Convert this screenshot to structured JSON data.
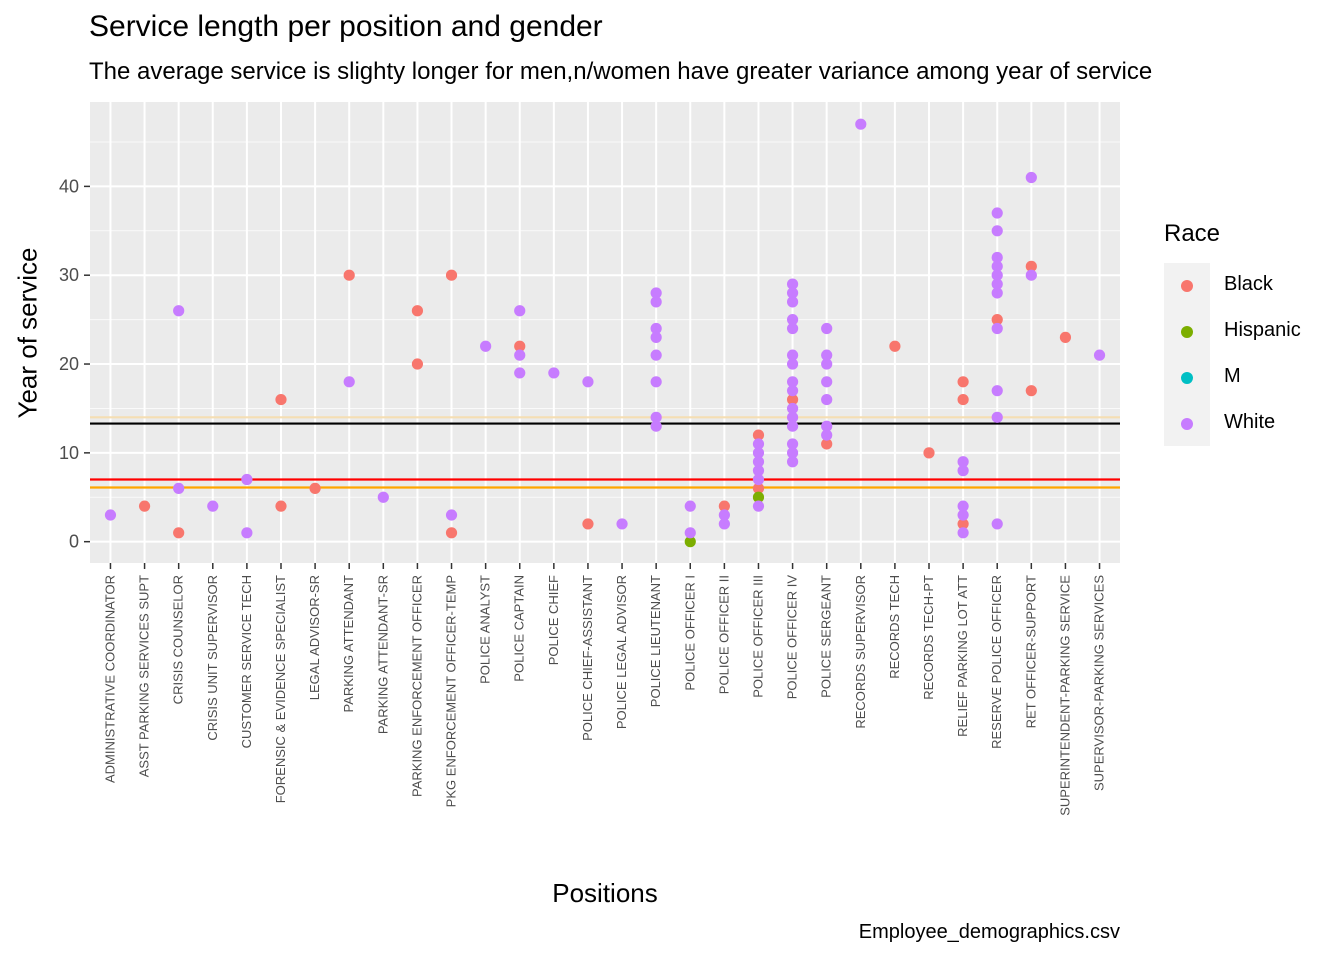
{
  "title": "Service length per position and gender",
  "subtitle": "The average service is slighty longer for men,n/women have greater variance among year of service",
  "caption": "Employee_demographics.csv",
  "legend": {
    "title": "Race",
    "items": [
      {
        "label": "Black",
        "color": "#F8766D"
      },
      {
        "label": "Hispanic",
        "color": "#7CAE00"
      },
      {
        "label": "M",
        "color": "#00BFC4"
      },
      {
        "label": "White",
        "color": "#C77CFF"
      }
    ]
  },
  "chart_data": {
    "type": "scatter",
    "xlabel": "Positions",
    "ylabel": "Year of service",
    "ylim": [
      -2.4,
      49.5
    ],
    "yticks": [
      0,
      10,
      20,
      30,
      40
    ],
    "grid": true,
    "legend_position": "right",
    "categories": [
      "ADMINISTRATIVE COORDINATOR",
      "ASST PARKING SERVICES SUPT",
      "CRISIS COUNSELOR",
      "CRISIS UNIT SUPERVISOR",
      "CUSTOMER SERVICE TECH",
      "FORENSIC & EVIDENCE SPECIALIST",
      "LEGAL ADVISOR-SR",
      "PARKING ATTENDANT",
      "PARKING ATTENDANT-SR",
      "PARKING ENFORCEMENT OFFICER",
      "PKG ENFORCEMENT OFFICER-TEMP",
      "POLICE ANALYST",
      "POLICE CAPTAIN",
      "POLICE CHIEF",
      "POLICE CHIEF-ASSISTANT",
      "POLICE LEGAL ADVISOR",
      "POLICE LIEUTENANT",
      "POLICE OFFICER I",
      "POLICE OFFICER II",
      "POLICE OFFICER III",
      "POLICE OFFICER IV",
      "POLICE SERGEANT",
      "RECORDS SUPERVISOR",
      "RECORDS TECH",
      "RECORDS TECH-PT",
      "RELIEF PARKING LOT ATT",
      "RESERVE POLICE OFFICER",
      "RET OFFICER-SUPPORT",
      "SUPERINTENDENT-PARKING SERVICE",
      "SUPERVISOR-PARKING SERVICES"
    ],
    "hlines": [
      {
        "y": 14.0,
        "color": "#F5DEB3"
      },
      {
        "y": 13.3,
        "color": "#000000"
      },
      {
        "y": 7.0,
        "color": "#FF0000"
      },
      {
        "y": 6.1,
        "color": "#FFA500"
      }
    ],
    "series": [
      {
        "name": "Black",
        "color": "#F8766D",
        "points": [
          [
            1,
            4
          ],
          [
            2,
            1
          ],
          [
            5,
            16
          ],
          [
            5,
            4
          ],
          [
            6,
            6
          ],
          [
            7,
            30
          ],
          [
            9,
            26
          ],
          [
            9,
            20
          ],
          [
            10,
            30
          ],
          [
            10,
            1
          ],
          [
            12,
            22
          ],
          [
            14,
            2
          ],
          [
            18,
            4
          ],
          [
            19,
            12
          ],
          [
            19,
            6
          ],
          [
            20,
            16
          ],
          [
            21,
            11
          ],
          [
            23,
            22
          ],
          [
            24,
            10
          ],
          [
            25,
            18
          ],
          [
            25,
            16
          ],
          [
            25,
            2
          ],
          [
            26,
            25
          ],
          [
            27,
            31
          ],
          [
            27,
            17
          ],
          [
            28,
            23
          ]
        ]
      },
      {
        "name": "Hispanic",
        "color": "#7CAE00",
        "points": [
          [
            17,
            0
          ],
          [
            19,
            5
          ]
        ]
      },
      {
        "name": "White",
        "color": "#C77CFF",
        "points": [
          [
            0,
            3
          ],
          [
            2,
            26
          ],
          [
            2,
            6
          ],
          [
            3,
            4
          ],
          [
            4,
            7
          ],
          [
            4,
            1
          ],
          [
            7,
            18
          ],
          [
            8,
            5
          ],
          [
            10,
            3
          ],
          [
            11,
            22
          ],
          [
            12,
            26
          ],
          [
            12,
            21
          ],
          [
            12,
            19
          ],
          [
            13,
            19
          ],
          [
            14,
            18
          ],
          [
            15,
            2
          ],
          [
            16,
            28
          ],
          [
            16,
            27
          ],
          [
            16,
            24
          ],
          [
            16,
            23
          ],
          [
            16,
            21
          ],
          [
            16,
            18
          ],
          [
            16,
            14
          ],
          [
            16,
            13
          ],
          [
            17,
            4
          ],
          [
            17,
            1
          ],
          [
            18,
            3
          ],
          [
            18,
            2
          ],
          [
            19,
            11
          ],
          [
            19,
            10
          ],
          [
            19,
            9
          ],
          [
            19,
            8
          ],
          [
            19,
            7
          ],
          [
            19,
            4
          ],
          [
            20,
            29
          ],
          [
            20,
            28
          ],
          [
            20,
            27
          ],
          [
            20,
            25
          ],
          [
            20,
            24
          ],
          [
            20,
            21
          ],
          [
            20,
            20
          ],
          [
            20,
            18
          ],
          [
            20,
            17
          ],
          [
            20,
            15
          ],
          [
            20,
            14
          ],
          [
            20,
            13
          ],
          [
            20,
            11
          ],
          [
            20,
            10
          ],
          [
            20,
            9
          ],
          [
            21,
            24
          ],
          [
            21,
            21
          ],
          [
            21,
            20
          ],
          [
            21,
            18
          ],
          [
            21,
            16
          ],
          [
            21,
            13
          ],
          [
            21,
            12
          ],
          [
            22,
            47
          ],
          [
            25,
            9
          ],
          [
            25,
            8
          ],
          [
            25,
            4
          ],
          [
            25,
            3
          ],
          [
            25,
            1
          ],
          [
            26,
            37
          ],
          [
            26,
            35
          ],
          [
            26,
            32
          ],
          [
            26,
            31
          ],
          [
            26,
            30
          ],
          [
            26,
            29
          ],
          [
            26,
            28
          ],
          [
            26,
            24
          ],
          [
            26,
            17
          ],
          [
            26,
            14
          ],
          [
            26,
            2
          ],
          [
            27,
            41
          ],
          [
            27,
            30
          ],
          [
            29,
            21
          ]
        ]
      }
    ]
  }
}
